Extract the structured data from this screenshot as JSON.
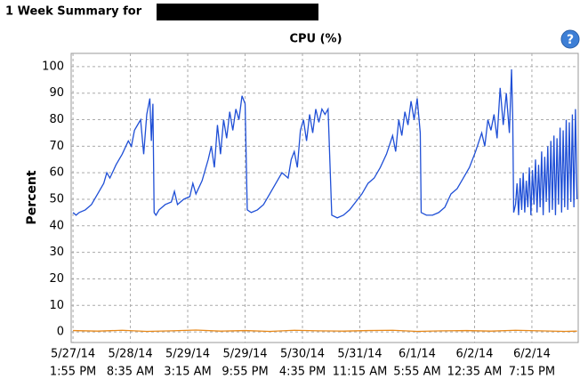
{
  "header": {
    "title": "1 Week Summary for"
  },
  "chart_data": {
    "type": "line",
    "title": "CPU (%)",
    "help_icon": "?",
    "y_label": "Percent",
    "ylim": [
      -4,
      105
    ],
    "yticks": [
      0,
      10,
      20,
      30,
      40,
      50,
      60,
      70,
      80,
      90,
      100
    ],
    "xlim": [
      -0.6,
      164.4
    ],
    "xticks": [
      {
        "value": 0,
        "label": [
          "5/27/14",
          "1:55 PM"
        ]
      },
      {
        "value": 18.67,
        "label": [
          "5/28/14",
          "8:35 AM"
        ]
      },
      {
        "value": 37.33,
        "label": [
          "5/29/14",
          "3:15 AM"
        ]
      },
      {
        "value": 56,
        "label": [
          "5/29/14",
          "9:55 PM"
        ]
      },
      {
        "value": 74.67,
        "label": [
          "5/30/14",
          "4:35 PM"
        ]
      },
      {
        "value": 93.33,
        "label": [
          "5/31/14",
          "11:15 AM"
        ]
      },
      {
        "value": 112,
        "label": [
          "6/1/14",
          "5:55 AM"
        ]
      },
      {
        "value": 130.67,
        "label": [
          "6/2/14",
          "12:35 AM"
        ]
      },
      {
        "value": 149.33,
        "label": [
          "6/2/14",
          "7:15 PM"
        ]
      }
    ],
    "grid": true,
    "series": [
      {
        "color": "#1f4fd6",
        "x": [
          0,
          1,
          2,
          4,
          6,
          8,
          10,
          11,
          12,
          14,
          16,
          18,
          19,
          20,
          21,
          22,
          23,
          24,
          25,
          25.5,
          26,
          26.4,
          27,
          28,
          30,
          32,
          33,
          34,
          36,
          38,
          39,
          40,
          42,
          44,
          45,
          46,
          47,
          48,
          49,
          50,
          51,
          52,
          53,
          54,
          55,
          56,
          56.7,
          58,
          60,
          62,
          64,
          66,
          68,
          70,
          71,
          72,
          73,
          74,
          75,
          76,
          77,
          78,
          79,
          80,
          81,
          82,
          83,
          84.2,
          86,
          88,
          90,
          92,
          94,
          96,
          98,
          100,
          102,
          104,
          105,
          106,
          107,
          108,
          109,
          110,
          111,
          112,
          113,
          113.3,
          115,
          117,
          119,
          121,
          123,
          125,
          127,
          129,
          131,
          133,
          134,
          135,
          136,
          137,
          138,
          139,
          140,
          141,
          142,
          142.7,
          143.1,
          143.4,
          144,
          144.5,
          145,
          145.5,
          146,
          146.5,
          147,
          147.5,
          148,
          148.5,
          149,
          149.5,
          150,
          150.5,
          151,
          151.5,
          152,
          152.5,
          153,
          153.5,
          154,
          154.5,
          155,
          155.5,
          156,
          156.5,
          157,
          157.5,
          158,
          158.5,
          159,
          159.5,
          160,
          160.5,
          161,
          161.5,
          162,
          162.5,
          163,
          163.5,
          164
        ],
        "values": [
          45,
          44,
          45,
          46,
          48,
          52,
          56,
          60,
          58,
          63,
          67,
          72,
          70,
          76,
          78,
          80,
          67,
          82,
          88,
          72,
          86,
          45,
          44,
          46,
          48,
          49,
          53,
          48,
          50,
          51,
          56,
          52,
          57,
          65,
          70,
          62,
          78,
          67,
          80,
          73,
          83,
          76,
          84,
          80,
          89,
          86,
          46,
          45,
          46,
          48,
          52,
          56,
          60,
          58,
          65,
          68,
          62,
          76,
          80,
          72,
          82,
          75,
          84,
          79,
          84,
          82,
          84,
          44,
          43,
          44,
          46,
          49,
          52,
          56,
          58,
          62,
          67,
          74,
          68,
          80,
          74,
          83,
          78,
          87,
          80,
          88,
          75,
          45,
          44,
          44,
          45,
          47,
          52,
          54,
          58,
          62,
          68,
          75,
          70,
          80,
          76,
          82,
          73,
          92,
          78,
          90,
          75,
          99,
          80,
          45,
          48,
          56,
          44,
          58,
          46,
          60,
          45,
          57,
          47,
          62,
          44,
          61,
          48,
          65,
          45,
          63,
          47,
          68,
          44,
          66,
          49,
          70,
          45,
          72,
          46,
          74,
          44,
          73,
          48,
          77,
          45,
          76,
          47,
          80,
          46,
          79,
          49,
          82,
          47,
          84,
          50
        ]
      },
      {
        "color": "#e8891a",
        "x": [
          0,
          8,
          16,
          24,
          32,
          40,
          48,
          56,
          64,
          72,
          80,
          88,
          96,
          104,
          112,
          120,
          128,
          136,
          144,
          152,
          160,
          164
        ],
        "values": [
          0.5,
          0.3,
          0.6,
          0.2,
          0.4,
          0.7,
          0.3,
          0.5,
          0.2,
          0.6,
          0.4,
          0.3,
          0.5,
          0.6,
          0.2,
          0.4,
          0.5,
          0.3,
          0.6,
          0.4,
          0.2,
          0.3
        ]
      }
    ]
  }
}
